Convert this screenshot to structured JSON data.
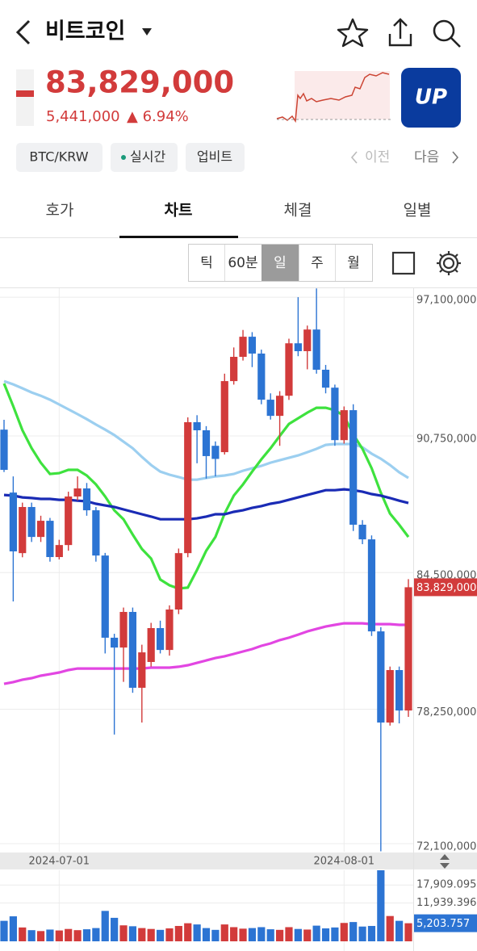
{
  "header": {
    "title": "비트코인"
  },
  "price": {
    "current": "83,829,000",
    "change": "5,441,000",
    "change_rate": "▲ 6.94%"
  },
  "logo": "UP",
  "tags": [
    "BTC/KRW",
    "실시간",
    "업비트"
  ],
  "nav": {
    "prev": "이전",
    "next": "다음"
  },
  "tabs": [
    "호가",
    "차트",
    "체결",
    "일별"
  ],
  "intervals": [
    "틱",
    "60분",
    "일",
    "주",
    "월"
  ],
  "chart_data": {
    "type": "candlestick",
    "categories": [
      null,
      null,
      null,
      null,
      null,
      null,
      "2024-07-01",
      null,
      null,
      null,
      null,
      null,
      null,
      null,
      null,
      null,
      null,
      null,
      null,
      null,
      null,
      null,
      null,
      null,
      null,
      null,
      null,
      null,
      null,
      null,
      null,
      null,
      null,
      null,
      null,
      null,
      null,
      "2024-08-01",
      null,
      null,
      null,
      null,
      null,
      null,
      null
    ],
    "open": [
      91040000,
      88160000,
      85390000,
      87500000,
      86130000,
      86870000,
      85210000,
      85760000,
      87980000,
      88350000,
      87350000,
      85280000,
      81520000,
      81070000,
      82700000,
      79230000,
      80410000,
      81960000,
      80960000,
      82810000,
      85390000,
      91380000,
      91010000,
      90300000,
      90010000,
      93260000,
      94370000,
      95290000,
      94520000,
      92410000,
      91670000,
      92590000,
      94990000,
      94630000,
      95620000,
      93780000,
      92960000,
      90560000,
      91930000,
      86690000,
      86020000,
      81810000,
      77640000,
      80040000,
      78190000
    ],
    "high": [
      91490000,
      88900000,
      87700000,
      87700000,
      87100000,
      87000000,
      86000000,
      88200000,
      88900000,
      88600000,
      87500000,
      85400000,
      81700000,
      82900000,
      82900000,
      81200000,
      82200000,
      82300000,
      83000000,
      85600000,
      91600000,
      91700000,
      91200000,
      90500000,
      93600000,
      94800000,
      95600000,
      95500000,
      94700000,
      92700000,
      92800000,
      95200000,
      97100000,
      95800000,
      97500000,
      94000000,
      93100000,
      92100000,
      92200000,
      86900000,
      86200000,
      82000000,
      80200000,
      80200000,
      84200000
    ],
    "low": [
      89100000,
      83180000,
      85200000,
      85900000,
      85900000,
      85000000,
      85100000,
      85500000,
      87800000,
      87100000,
      85000000,
      80800000,
      77090000,
      79500000,
      79000000,
      77640000,
      80200000,
      80800000,
      80700000,
      82600000,
      85200000,
      89500000,
      88800000,
      88900000,
      89900000,
      93100000,
      94200000,
      93900000,
      92200000,
      91500000,
      90300000,
      92400000,
      94400000,
      93800000,
      93600000,
      92700000,
      90300000,
      90400000,
      86400000,
      85800000,
      81600000,
      71750000,
      77500000,
      77600000,
      77900000
    ],
    "close": [
      89200000,
      85470000,
      87500000,
      86130000,
      86870000,
      85210000,
      85760000,
      87980000,
      88350000,
      87350000,
      85280000,
      81520000,
      81070000,
      82700000,
      79230000,
      80850000,
      81960000,
      80960000,
      82810000,
      85390000,
      91380000,
      91010000,
      89830000,
      89700000,
      93260000,
      94370000,
      95290000,
      94520000,
      92410000,
      91670000,
      92590000,
      94990000,
      94630000,
      95620000,
      93780000,
      92960000,
      90560000,
      91930000,
      86690000,
      86020000,
      81810000,
      77640000,
      80040000,
      78190000,
      83829000
    ],
    "up_color": "#d23b3b",
    "down_color": "#2c74d3",
    "current_price_label": "83,829,000",
    "series": [
      {
        "color": "#9ccff0",
        "values": [
          93260000,
          93110000,
          92930000,
          92740000,
          92590000,
          92410000,
          92190000,
          91970000,
          91750000,
          91520000,
          91270000,
          91040000,
          90790000,
          90490000,
          90190000,
          89790000,
          89420000,
          89120000,
          88980000,
          88870000,
          88750000,
          88750000,
          88830000,
          88900000,
          88940000,
          89010000,
          89160000,
          89270000,
          89380000,
          89530000,
          89640000,
          89750000,
          89860000,
          90010000,
          90160000,
          90340000,
          90380000,
          90380000,
          90380000,
          90230000,
          89940000,
          89710000,
          89420000,
          89090000,
          88830000
        ]
      },
      {
        "color": "#3ee23e",
        "values": [
          93150000,
          92110000,
          91010000,
          90190000,
          89530000,
          89010000,
          89050000,
          89200000,
          89200000,
          88940000,
          88530000,
          87980000,
          87350000,
          86940000,
          86240000,
          85580000,
          85140000,
          84180000,
          83920000,
          83770000,
          83810000,
          84620000,
          85500000,
          86130000,
          87200000,
          88020000,
          88530000,
          89120000,
          89680000,
          90190000,
          90750000,
          91300000,
          91560000,
          91820000,
          92040000,
          92040000,
          91930000,
          91670000,
          90820000,
          90160000,
          89270000,
          88160000,
          87200000,
          86690000,
          86130000
        ]
      },
      {
        "color": "#1a2bb5",
        "values": [
          88050000,
          88020000,
          87940000,
          87910000,
          87870000,
          87870000,
          87830000,
          87830000,
          87790000,
          87760000,
          87650000,
          87570000,
          87500000,
          87390000,
          87280000,
          87170000,
          87060000,
          86940000,
          86940000,
          86940000,
          86940000,
          86980000,
          87060000,
          87170000,
          87170000,
          87280000,
          87350000,
          87460000,
          87540000,
          87650000,
          87720000,
          87830000,
          87940000,
          88050000,
          88160000,
          88270000,
          88270000,
          88310000,
          88270000,
          88200000,
          88090000,
          88020000,
          87910000,
          87790000,
          87680000
        ]
      },
      {
        "color": "#e246e2",
        "values": [
          79410000,
          79490000,
          79600000,
          79670000,
          79780000,
          79850000,
          79930000,
          80040000,
          80110000,
          80110000,
          80110000,
          80110000,
          80110000,
          80110000,
          80110000,
          80110000,
          80150000,
          80150000,
          80150000,
          80190000,
          80260000,
          80370000,
          80480000,
          80590000,
          80670000,
          80780000,
          80890000,
          81000000,
          81150000,
          81260000,
          81410000,
          81520000,
          81660000,
          81810000,
          81920000,
          82030000,
          82110000,
          82180000,
          82180000,
          82180000,
          82140000,
          82140000,
          82140000,
          82110000,
          82110000
        ]
      }
    ],
    "ylim": [
      71730000,
      97510000
    ],
    "yticks": [
      {
        "value": 97100000,
        "label": "97,100,000"
      },
      {
        "value": 90750000,
        "label": "90,750,000"
      },
      {
        "value": 84500000,
        "label": "84,500,000"
      },
      {
        "value": 78250000,
        "label": "78,250,000"
      },
      {
        "value": 72100000,
        "label": "72,100,000"
      }
    ],
    "grid": true,
    "volume": {
      "values": [
        6000,
        7500,
        3800,
        2900,
        2600,
        3100,
        2800,
        3300,
        2900,
        3200,
        3600,
        9300,
        7000,
        4500,
        4200,
        3600,
        3300,
        3000,
        3500,
        4300,
        5200,
        4800,
        3600,
        3000,
        4800,
        3900,
        3400,
        3600,
        3900,
        3200,
        3000,
        3900,
        3300,
        3100,
        4400,
        3500,
        3800,
        5300,
        5600,
        4100,
        4300,
        22800,
        7600,
        6000,
        5203.757
      ],
      "current_label": "5,203.757",
      "ylim": [
        0,
        22800
      ],
      "yticks": [
        {
          "value": 17909.095,
          "label": "17,909.095"
        },
        {
          "value": 11939.396,
          "label": "11,939.396"
        }
      ]
    }
  }
}
